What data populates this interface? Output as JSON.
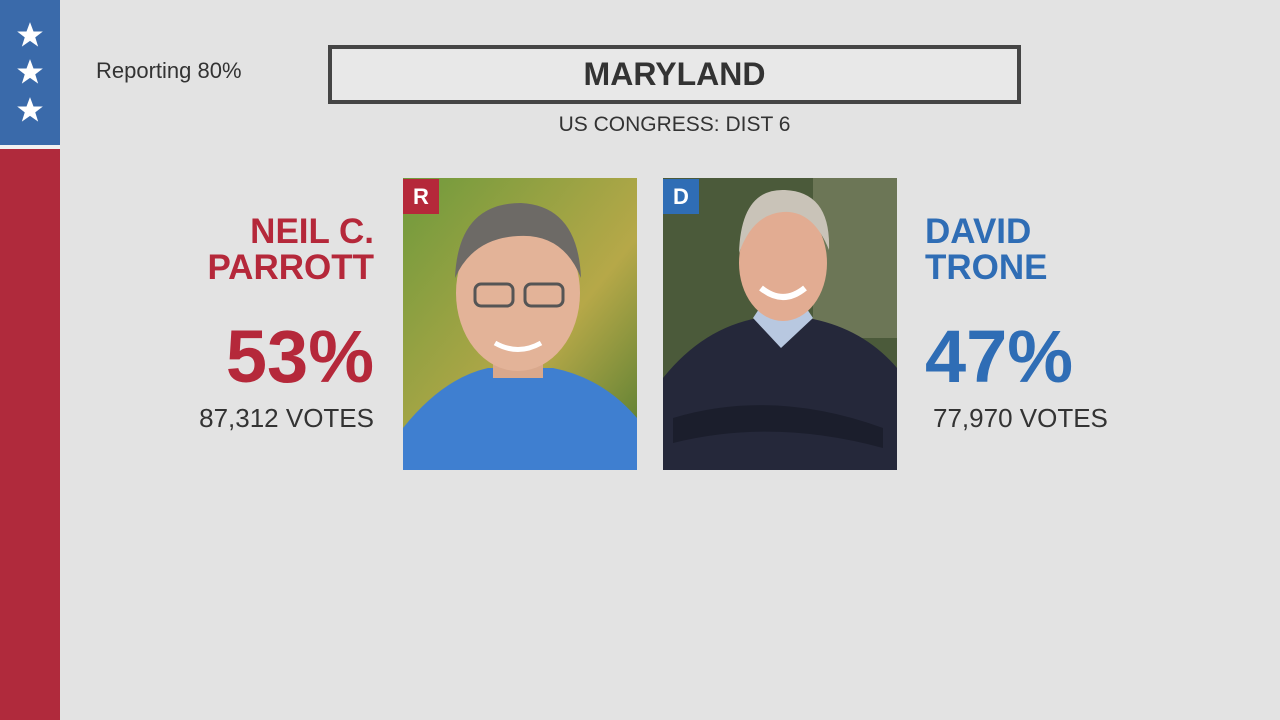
{
  "reporting": "Reporting 80%",
  "title": "MARYLAND",
  "subtitle": "US CONGRESS: DIST 6",
  "candidates": [
    {
      "party": "R",
      "name_lines": [
        "NEIL C.",
        "PARROTT"
      ],
      "percent": "53%",
      "votes": "87,312 VOTES"
    },
    {
      "party": "D",
      "name_lines": [
        "DAVID",
        "TRONE"
      ],
      "percent": "47%",
      "votes": "77,970 VOTES"
    }
  ]
}
